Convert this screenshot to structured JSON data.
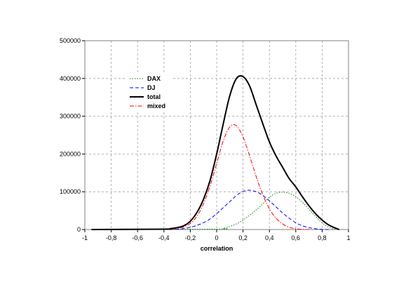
{
  "chart_data": {
    "type": "line",
    "title": "",
    "xlabel": "correlation",
    "ylabel": "",
    "xlim": [
      -1,
      1
    ],
    "ylim": [
      0,
      500000
    ],
    "grid": true,
    "legend_position": "upper-left inside plot",
    "x_ticks": [
      "-1",
      "-0,8",
      "-0,6",
      "-0,4",
      "-0,2",
      "0",
      "0,2",
      "0,4",
      "0,6",
      "0,8",
      "1"
    ],
    "y_ticks": [
      "0",
      "100000",
      "200000",
      "300000",
      "400000",
      "500000"
    ],
    "series": [
      {
        "name": "DAX",
        "color": "#008000",
        "style": "dotted",
        "x": [
          -0.95,
          0.0,
          0.05,
          0.1,
          0.15,
          0.2,
          0.25,
          0.3,
          0.35,
          0.4,
          0.45,
          0.5,
          0.55,
          0.6,
          0.65,
          0.7,
          0.75,
          0.8,
          0.85,
          0.9
        ],
        "y": [
          0,
          1000,
          3000,
          8000,
          15000,
          25000,
          38000,
          52000,
          68000,
          85000,
          96000,
          99000,
          96000,
          87000,
          72000,
          54000,
          35000,
          18000,
          6000,
          0
        ]
      },
      {
        "name": "DJ",
        "color": "#0000ff",
        "style": "dashed",
        "x": [
          -0.95,
          -0.35,
          -0.25,
          -0.2,
          -0.15,
          -0.1,
          -0.05,
          0.0,
          0.05,
          0.1,
          0.15,
          0.2,
          0.25,
          0.3,
          0.35,
          0.4,
          0.45,
          0.5,
          0.55,
          0.6,
          0.65,
          0.7,
          0.75,
          0.8,
          0.85
        ],
        "y": [
          0,
          500,
          3000,
          6000,
          11000,
          18000,
          28000,
          42000,
          58000,
          74000,
          90000,
          101000,
          104000,
          100000,
          90000,
          76000,
          60000,
          44000,
          30000,
          18000,
          10000,
          5000,
          2000,
          500,
          0
        ]
      },
      {
        "name": "total",
        "color": "#000000",
        "style": "solid",
        "x": [
          -0.95,
          -0.4,
          -0.35,
          -0.3,
          -0.25,
          -0.2,
          -0.15,
          -0.1,
          -0.05,
          0.0,
          0.05,
          0.1,
          0.15,
          0.2,
          0.25,
          0.3,
          0.35,
          0.4,
          0.45,
          0.5,
          0.55,
          0.6,
          0.65,
          0.7,
          0.75,
          0.8,
          0.85,
          0.9,
          0.93
        ],
        "y": [
          0,
          1000,
          2500,
          5000,
          10000,
          22000,
          45000,
          80000,
          130000,
          200000,
          280000,
          355000,
          400000,
          405000,
          380000,
          330000,
          280000,
          232000,
          195000,
          165000,
          135000,
          113000,
          87000,
          63000,
          42000,
          25000,
          12000,
          4000,
          0
        ]
      },
      {
        "name": "mixed",
        "color": "#ff0000",
        "style": "dashdot",
        "x": [
          -0.95,
          -0.4,
          -0.3,
          -0.25,
          -0.2,
          -0.15,
          -0.1,
          -0.05,
          0.0,
          0.05,
          0.1,
          0.15,
          0.2,
          0.25,
          0.3,
          0.35,
          0.4,
          0.45,
          0.5,
          0.55,
          0.6,
          0.65,
          0.7
        ],
        "y": [
          0,
          500,
          3000,
          7000,
          16000,
          35000,
          68000,
          115000,
          175000,
          235000,
          272000,
          275000,
          245000,
          195000,
          140000,
          92000,
          55000,
          30000,
          15000,
          6000,
          2000,
          500,
          0
        ]
      }
    ]
  }
}
